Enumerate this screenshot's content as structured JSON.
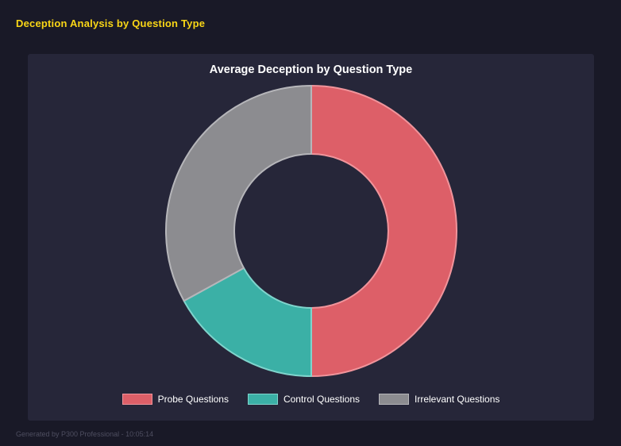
{
  "header": {
    "title": "Deception Analysis by Question Type"
  },
  "footer": {
    "text": "Generated by P300 Professional - 10:05:14"
  },
  "colors": {
    "page_background": "#191927",
    "panel_background": "#262639",
    "header_yellow": "#f9d616",
    "text_white": "#ffffff",
    "footer_gray": "#4e4e60"
  },
  "chart_data": {
    "type": "pie",
    "subtype": "donut",
    "title": "Average Deception by Question Type",
    "labels": [
      "Probe Questions",
      "Control Questions",
      "Irrelevant Questions"
    ],
    "values": [
      50,
      17,
      33
    ],
    "unit": "percent-of-circle (estimated from arc angles)",
    "colors": [
      "#dd5f68",
      "#3bb0a6",
      "#8c8c90"
    ],
    "border_colors": [
      "#f0949b",
      "#7fd4cc",
      "#b6b6ba"
    ],
    "donut_hole_ratio": 0.53,
    "start_angle_deg": 0,
    "direction": "clockwise",
    "legend_position": "bottom",
    "grid": false
  }
}
